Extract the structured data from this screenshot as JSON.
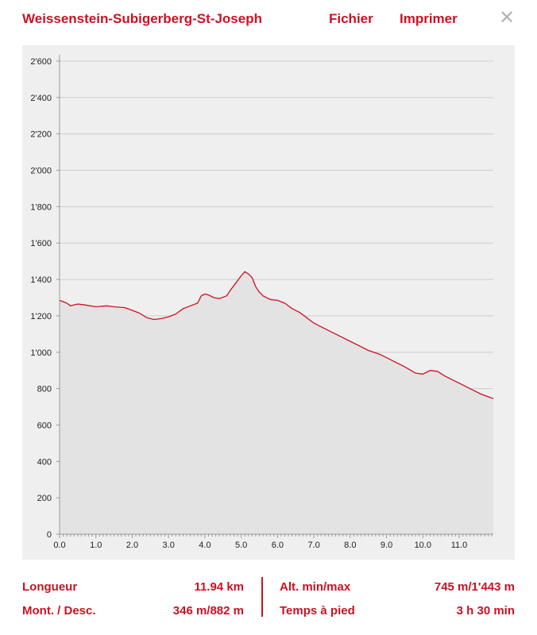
{
  "header": {
    "title": "Weissenstein-Subigerberg-St-Joseph",
    "menu": [
      "Fichier",
      "Imprimer"
    ],
    "close_icon": "close-icon"
  },
  "colors": {
    "accent": "#cc1122",
    "area_fill": "#e3e3e3",
    "plot_bg": "#efefef",
    "grid": "#cccccc",
    "close_icon": "#b5b5b5"
  },
  "chart_data": {
    "type": "area",
    "title": "",
    "xlabel": "",
    "ylabel": "",
    "xlim": [
      0,
      11.94
    ],
    "ylim": [
      0,
      2600
    ],
    "grid": true,
    "xticks": [
      0,
      1,
      2,
      3,
      4,
      5,
      6,
      7,
      8,
      9,
      10,
      11
    ],
    "xtick_labels": [
      "0.0",
      "1.0",
      "2.0",
      "3.0",
      "4.0",
      "5.0",
      "6.0",
      "7.0",
      "8.0",
      "9.0",
      "10.0",
      "11.0"
    ],
    "yticks": [
      0,
      200,
      400,
      600,
      800,
      1000,
      1200,
      1400,
      1600,
      1800,
      2000,
      2200,
      2400,
      2600
    ],
    "ytick_labels": [
      "0",
      "200",
      "400",
      "600",
      "800",
      "1'000",
      "1'200",
      "1'400",
      "1'600",
      "1'800",
      "2'000",
      "2'200",
      "2'400",
      "2'600"
    ],
    "x": [
      0,
      0.2,
      0.3,
      0.5,
      0.7,
      1.0,
      1.3,
      1.5,
      1.8,
      2.0,
      2.2,
      2.4,
      2.6,
      2.8,
      3.0,
      3.2,
      3.4,
      3.6,
      3.8,
      3.9,
      4.0,
      4.1,
      4.25,
      4.4,
      4.6,
      4.7,
      4.85,
      5.0,
      5.1,
      5.2,
      5.3,
      5.4,
      5.5,
      5.6,
      5.8,
      6.0,
      6.2,
      6.4,
      6.6,
      6.8,
      7.0,
      7.4,
      7.8,
      8.0,
      8.2,
      8.5,
      8.8,
      9.0,
      9.2,
      9.5,
      9.8,
      10.0,
      10.1,
      10.2,
      10.4,
      10.6,
      10.8,
      11.0,
      11.2,
      11.4,
      11.6,
      11.8,
      11.94
    ],
    "y": [
      1285,
      1270,
      1255,
      1265,
      1260,
      1250,
      1255,
      1250,
      1245,
      1230,
      1215,
      1190,
      1180,
      1185,
      1195,
      1210,
      1240,
      1255,
      1270,
      1310,
      1320,
      1315,
      1300,
      1295,
      1310,
      1340,
      1380,
      1420,
      1443,
      1430,
      1410,
      1360,
      1330,
      1310,
      1290,
      1285,
      1270,
      1240,
      1220,
      1190,
      1160,
      1120,
      1080,
      1060,
      1040,
      1010,
      990,
      970,
      950,
      920,
      885,
      880,
      890,
      900,
      895,
      870,
      850,
      830,
      810,
      790,
      770,
      755,
      745
    ]
  },
  "stats": {
    "length_label": "Longueur",
    "length_value": "11.94 km",
    "ascent_label": "Mont. / Desc.",
    "ascent_value": "346 m/882 m",
    "alt_label": "Alt. min/max",
    "alt_value": "745 m/1'443 m",
    "time_label": "Temps à pied",
    "time_value": "3 h 30 min"
  }
}
